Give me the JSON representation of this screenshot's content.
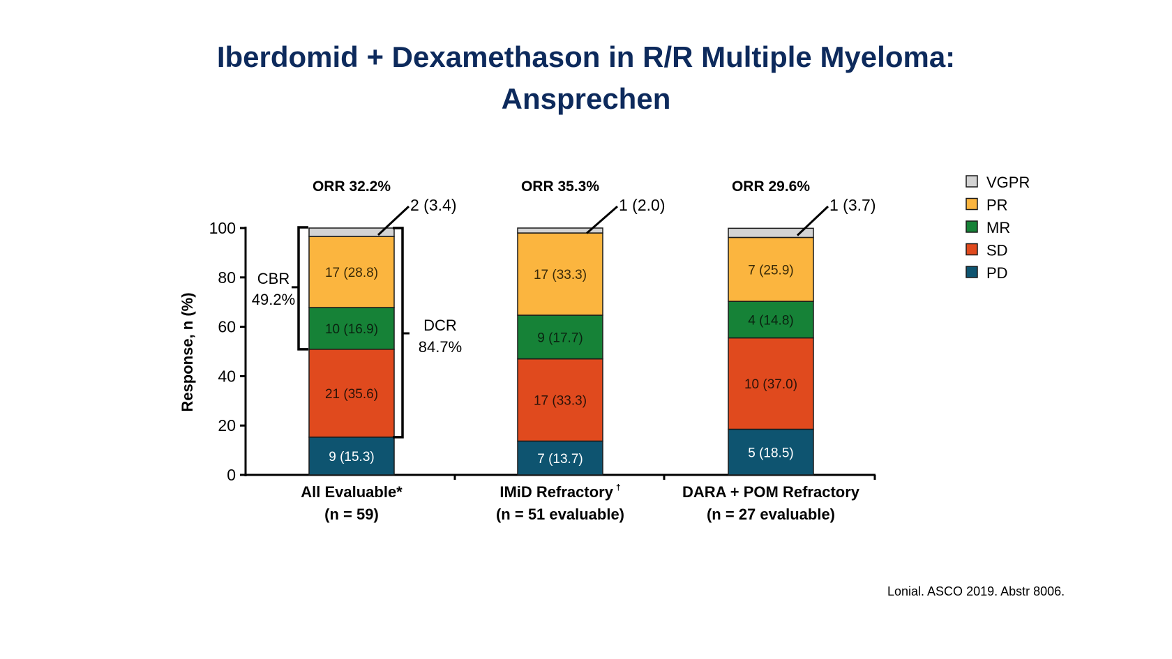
{
  "title_line1": "Iberdomid + Dexamethason in R/R Multiple Myeloma:",
  "title_line2": "Ansprechen",
  "citation": "Lonial. ASCO 2019. Abstr 8006.",
  "chart_data": {
    "type": "bar",
    "stacked": true,
    "ylabel": "Response, n (%)",
    "ylim": [
      0,
      100
    ],
    "yticks": [
      "0",
      "20",
      "40",
      "60",
      "80",
      "100"
    ],
    "categories": [
      {
        "line1": "All Evaluable*",
        "line2": "(n = 59)"
      },
      {
        "line1": "IMiD Refractory",
        "line2": "(n = 51 evaluable)"
      },
      {
        "line1": "DARA + POM Refractory",
        "line2": "(n = 27 evaluable)"
      }
    ],
    "orr_labels": [
      "ORR 32.2%",
      "ORR 35.3%",
      "ORR 29.6%"
    ],
    "series": [
      {
        "name": "PD",
        "color": "#0e5470",
        "text_color": "#ffffff",
        "values": [
          15.3,
          13.7,
          18.5
        ],
        "labels": [
          "9 (15.3)",
          "7 (13.7)",
          "5 (18.5)"
        ]
      },
      {
        "name": "SD",
        "color": "#e04a1e",
        "text_color": "#2a1208",
        "values": [
          35.6,
          33.3,
          37.0
        ],
        "labels": [
          "21 (35.6)",
          "17 (33.3)",
          "10 (37.0)"
        ]
      },
      {
        "name": "MR",
        "color": "#168237",
        "text_color": "#0a2210",
        "values": [
          16.9,
          17.7,
          14.8
        ],
        "labels": [
          "10 (16.9)",
          "9 (17.7)",
          "4 (14.8)"
        ]
      },
      {
        "name": "PR",
        "color": "#fbb53f",
        "text_color": "#3a2a08",
        "values": [
          28.8,
          33.3,
          25.9
        ],
        "labels": [
          "17 (28.8)",
          "17 (33.3)",
          "7 (25.9)"
        ]
      },
      {
        "name": "VGPR",
        "color": "#d3d3d3",
        "text_color": "#222222",
        "values": [
          3.4,
          2.0,
          3.7
        ],
        "labels": [
          "2 (3.4)",
          "1 (2.0)",
          "1 (3.7)"
        ]
      }
    ],
    "legend": [
      "VGPR",
      "PR",
      "MR",
      "SD",
      "PD"
    ],
    "legend_position": "right",
    "annotations": {
      "cbr_label": "CBR",
      "cbr_value": "49.2%",
      "dcr_label": "DCR",
      "dcr_value": "84.7%",
      "imid_dagger": "†"
    }
  }
}
